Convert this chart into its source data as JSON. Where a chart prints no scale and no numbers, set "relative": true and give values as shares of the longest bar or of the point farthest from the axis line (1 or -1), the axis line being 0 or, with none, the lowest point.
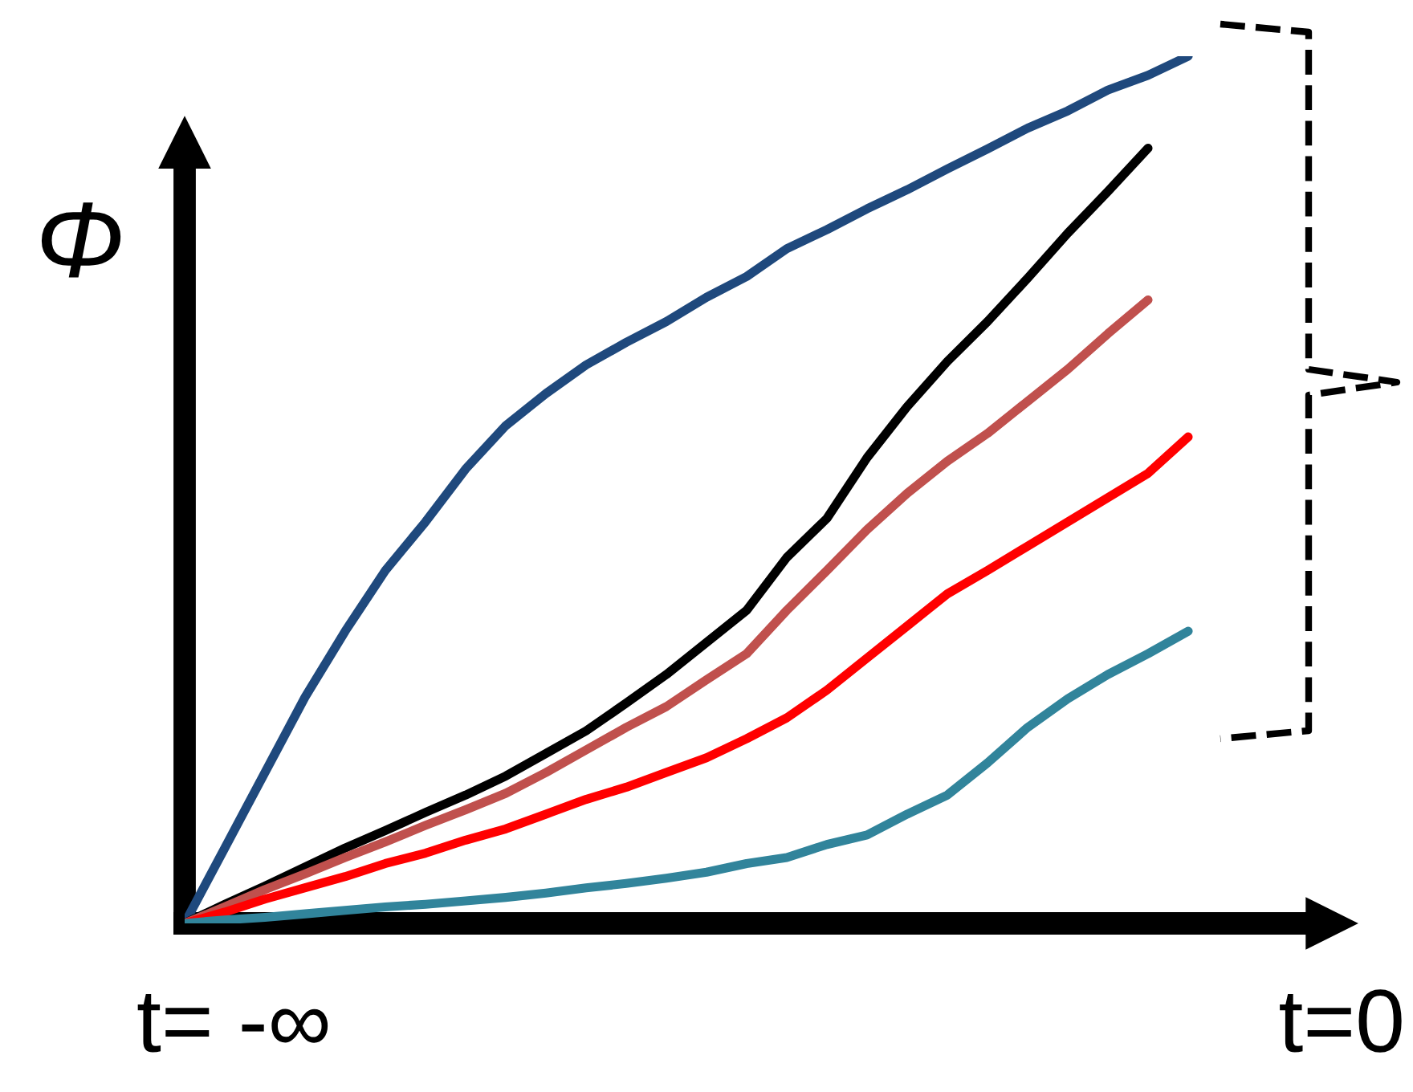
{
  "chart_data": {
    "type": "line",
    "relative": true,
    "ylabel": "Φ",
    "annotations": [
      "t= -∞",
      "t=0"
    ],
    "categories": [
      null,
      null,
      null,
      null,
      null,
      null,
      null,
      null,
      null,
      null,
      null,
      null,
      null,
      null,
      null,
      null,
      null,
      null,
      null,
      null,
      null,
      null,
      null,
      null,
      null,
      null
    ],
    "grid": false,
    "legend": false,
    "marker": "none",
    "line_style": "solid",
    "series": [
      {
        "color": "#1f497d",
        "values": [
          0,
          0.087,
          0.174,
          0.261,
          0.337,
          0.407,
          0.463,
          0.524,
          0.574,
          0.611,
          0.644,
          0.67,
          0.694,
          0.722,
          0.746,
          0.778,
          0.8,
          0.824,
          0.846,
          0.87,
          0.893,
          0.917,
          0.937,
          0.961,
          0.978,
          1
        ]
      },
      {
        "color": "#000000",
        "values": [
          0,
          0.022,
          0.043,
          0.065,
          0.087,
          0.107,
          0.128,
          0.148,
          0.17,
          0.196,
          0.222,
          0.254,
          0.287,
          0.324,
          0.361,
          0.422,
          0.467,
          0.537,
          0.596,
          0.648,
          0.694,
          0.744,
          0.796,
          0.844,
          0.894,
          null
        ]
      },
      {
        "color": "#c0504d",
        "values": [
          0,
          0.019,
          0.039,
          0.057,
          0.076,
          0.094,
          0.113,
          0.131,
          0.15,
          0.174,
          0.2,
          0.226,
          0.25,
          0.281,
          0.311,
          0.361,
          0.407,
          0.454,
          0.496,
          0.533,
          0.565,
          0.602,
          0.639,
          0.68,
          0.719,
          null
        ]
      },
      {
        "color": "#ff0000",
        "values": [
          0,
          0.013,
          0.028,
          0.041,
          0.054,
          0.069,
          0.081,
          0.096,
          0.109,
          0.126,
          0.143,
          0.157,
          0.174,
          0.191,
          0.213,
          0.237,
          0.269,
          0.306,
          0.343,
          0.38,
          0.407,
          0.435,
          0.463,
          0.491,
          0.519,
          0.561
        ]
      },
      {
        "color": "#31849b",
        "values": [
          0,
          0.004,
          0.007,
          0.011,
          0.015,
          0.019,
          0.022,
          0.026,
          0.03,
          0.035,
          0.041,
          0.046,
          0.052,
          0.059,
          0.069,
          0.076,
          0.091,
          0.102,
          0.126,
          0.148,
          0.185,
          0.226,
          0.259,
          0.287,
          0.311,
          0.337
        ]
      }
    ]
  }
}
